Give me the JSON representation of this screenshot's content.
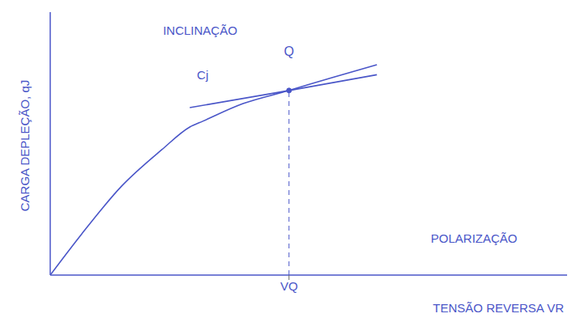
{
  "chart_data": {
    "type": "line",
    "x_label": "TENSÃO REVERSA VR",
    "y_label": "CARGA DEPLEÇÃO, qJ",
    "x": [
      0,
      0.6,
      1.38,
      2.16,
      2.7,
      2.95,
      3.73,
      4.62,
      5.45,
      6.32
    ],
    "series": [
      {
        "color": "#4a56c8",
        "line_style": "solid",
        "values": [
          0,
          1.54,
          3.38,
          4.77,
          5.63,
          5.85,
          6.52,
          7.02,
          7.51,
          8.0
        ]
      },
      {
        "color": "#4a56c8",
        "line_style": "solid",
        "values": [
          null,
          null,
          null,
          null,
          6.37,
          null,
          null,
          7.02,
          null,
          7.62
        ]
      }
    ],
    "xlim": [
      0,
      10
    ],
    "ylim": [
      0,
      10
    ],
    "xticks": [
      {
        "value": 4.62,
        "label": "VQ"
      }
    ],
    "tick_labels": "x",
    "grid": false,
    "point": {
      "label": "Q",
      "x": 4.62,
      "y": 7.02,
      "line_style": "dashed"
    },
    "annotations": [
      {
        "text": "INCLINAÇÃO",
        "x": 2.9,
        "y": 9.3
      },
      {
        "text": "Cj",
        "x": 2.95,
        "y": 7.6
      },
      {
        "text": "POLARIZAÇÃO",
        "x": 8.2,
        "y": 1.4
      }
    ]
  }
}
